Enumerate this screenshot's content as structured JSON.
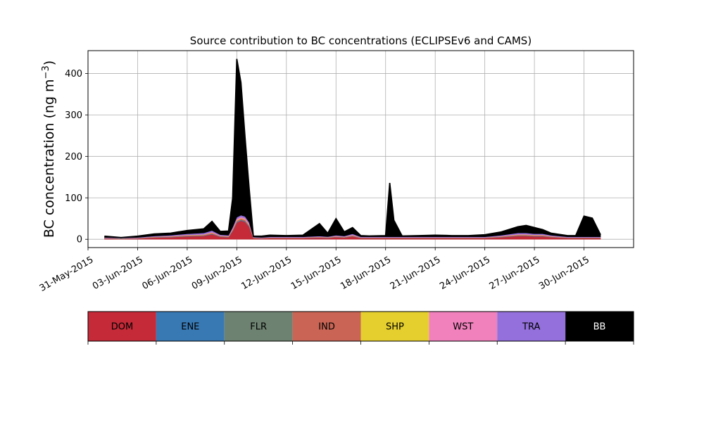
{
  "chart_data": {
    "type": "area",
    "stacked": true,
    "title": "Source contribution to BC concentrations (ECLIPSEv6 and CAMS)",
    "ylabel": "BC concentration (ng m",
    "ylabel_superscript": "−3",
    "ylabel_close": ")",
    "xlabel": "",
    "ylim": [
      -20,
      455
    ],
    "xlim": [
      "2015-05-31",
      "2015-07-03"
    ],
    "yticks": [
      0,
      100,
      200,
      300,
      400
    ],
    "xticks": [
      "31-May-2015",
      "03-Jun-2015",
      "06-Jun-2015",
      "09-Jun-2015",
      "12-Jun-2015",
      "15-Jun-2015",
      "18-Jun-2015",
      "21-Jun-2015",
      "24-Jun-2015",
      "27-Jun-2015",
      "30-Jun-2015"
    ],
    "grid": true,
    "x": [
      "2015-06-01",
      "2015-06-02",
      "2015-06-03",
      "2015-06-04",
      "2015-06-05",
      "2015-06-06",
      "2015-06-07",
      "2015-06-07 12:00",
      "2015-06-08",
      "2015-06-08 12:00",
      "2015-06-08 18:00",
      "2015-06-09",
      "2015-06-09 06:00",
      "2015-06-09 12:00",
      "2015-06-09 18:00",
      "2015-06-10",
      "2015-06-10 12:00",
      "2015-06-11",
      "2015-06-12",
      "2015-06-13",
      "2015-06-14",
      "2015-06-14 12:00",
      "2015-06-15",
      "2015-06-15 12:00",
      "2015-06-16",
      "2015-06-16 12:00",
      "2015-06-17",
      "2015-06-18",
      "2015-06-18 06:00",
      "2015-06-18 12:00",
      "2015-06-19",
      "2015-06-20",
      "2015-06-21",
      "2015-06-22",
      "2015-06-23",
      "2015-06-24",
      "2015-06-25",
      "2015-06-26",
      "2015-06-26 12:00",
      "2015-06-27",
      "2015-06-27 12:00",
      "2015-06-28",
      "2015-06-29",
      "2015-06-29 12:00",
      "2015-06-30",
      "2015-06-30 12:00",
      "2015-07-01"
    ],
    "series": [
      {
        "name": "DOM",
        "color": "#c42a38",
        "values": [
          2,
          1,
          2,
          4,
          5,
          7,
          8,
          12,
          6,
          5,
          20,
          40,
          45,
          42,
          30,
          3,
          2,
          3,
          3,
          3,
          4,
          3,
          5,
          4,
          7,
          3,
          3,
          3,
          3,
          3,
          3,
          3,
          3,
          3,
          3,
          3,
          5,
          8,
          8,
          7,
          7,
          5,
          3,
          3,
          3,
          3,
          3
        ]
      },
      {
        "name": "ENE",
        "color": "#3879b4",
        "values": [
          0.3,
          0.3,
          0.3,
          0.5,
          0.5,
          0.7,
          0.8,
          1,
          0.6,
          0.5,
          1,
          1.5,
          1.5,
          1.5,
          1.2,
          0.3,
          0.3,
          0.3,
          0.3,
          0.3,
          0.4,
          0.4,
          0.5,
          0.4,
          0.6,
          0.3,
          0.3,
          0.3,
          0.3,
          0.3,
          0.3,
          0.3,
          0.3,
          0.3,
          0.3,
          0.3,
          0.5,
          0.8,
          0.8,
          0.7,
          0.7,
          0.5,
          0.3,
          0.3,
          0.3,
          0.3,
          0.3
        ]
      },
      {
        "name": "FLR",
        "color": "#6d8270",
        "values": [
          0.1,
          0.1,
          0.1,
          0.2,
          0.2,
          0.3,
          0.3,
          0.4,
          0.2,
          0.2,
          0.4,
          0.6,
          0.6,
          0.6,
          0.5,
          0.1,
          0.1,
          0.1,
          0.1,
          0.1,
          0.2,
          0.2,
          0.2,
          0.2,
          0.3,
          0.1,
          0.1,
          0.1,
          0.1,
          0.1,
          0.1,
          0.1,
          0.1,
          0.1,
          0.1,
          0.1,
          0.2,
          0.3,
          0.3,
          0.3,
          0.3,
          0.2,
          0.1,
          0.1,
          0.1,
          0.1,
          0.1
        ]
      },
      {
        "name": "IND",
        "color": "#ca6555",
        "values": [
          0.5,
          0.4,
          0.5,
          0.8,
          1,
          1.3,
          1.5,
          2,
          1,
          1,
          2,
          3,
          3,
          3,
          2.5,
          0.5,
          0.5,
          0.6,
          0.6,
          0.6,
          0.8,
          0.7,
          1,
          0.8,
          1.3,
          0.6,
          0.6,
          0.6,
          0.6,
          0.6,
          0.6,
          0.6,
          0.6,
          0.6,
          0.6,
          0.6,
          1,
          1.5,
          1.5,
          1.3,
          1.3,
          1,
          0.6,
          0.6,
          0.6,
          0.6,
          0.6
        ]
      },
      {
        "name": "SHP",
        "color": "#e5cf2f",
        "values": [
          0.3,
          0.3,
          0.3,
          0.4,
          0.5,
          0.6,
          0.7,
          0.8,
          0.5,
          0.5,
          0.8,
          1,
          1,
          1,
          0.8,
          0.3,
          0.3,
          0.3,
          0.3,
          0.3,
          0.4,
          0.4,
          0.5,
          0.4,
          0.6,
          0.3,
          0.3,
          0.3,
          0.3,
          0.3,
          0.3,
          0.3,
          0.3,
          0.3,
          0.3,
          0.3,
          0.5,
          0.7,
          0.7,
          0.6,
          0.6,
          0.5,
          0.3,
          0.3,
          0.3,
          0.3,
          0.3
        ]
      },
      {
        "name": "WST",
        "color": "#f081bc",
        "values": [
          0.3,
          0.2,
          0.3,
          0.5,
          0.6,
          0.8,
          0.9,
          1.5,
          0.7,
          0.6,
          2,
          3,
          3,
          3,
          2.5,
          0.3,
          0.3,
          0.4,
          0.4,
          0.4,
          0.5,
          0.4,
          0.6,
          0.5,
          0.8,
          0.4,
          0.4,
          0.4,
          0.4,
          0.4,
          0.4,
          0.4,
          0.4,
          0.4,
          0.4,
          0.4,
          0.6,
          1,
          1,
          0.9,
          0.9,
          0.6,
          0.4,
          0.4,
          0.4,
          0.4,
          0.4
        ]
      },
      {
        "name": "TRA",
        "color": "#9370db",
        "values": [
          1,
          0.8,
          1,
          1.5,
          2,
          2.5,
          3,
          3.5,
          2,
          2,
          3,
          4,
          4,
          4,
          3.5,
          1,
          1,
          1.2,
          1.2,
          1.2,
          1.5,
          1.3,
          2,
          1.5,
          2.5,
          1.2,
          1.2,
          1.2,
          1.2,
          1.2,
          1.2,
          1.2,
          1.2,
          1.2,
          1.2,
          1.2,
          2,
          3,
          3,
          2.5,
          2.5,
          2,
          1.2,
          1.2,
          1.2,
          1.2,
          1.2
        ]
      },
      {
        "name": "BB",
        "color": "#000000",
        "values": [
          3,
          1,
          3,
          5,
          5,
          8,
          10,
          22,
          8,
          10,
          70,
          382,
          320,
          190,
          80,
          2,
          3,
          4,
          3,
          4,
          30,
          8,
          40,
          10,
          15,
          3,
          2,
          3,
          130,
          40,
          2,
          3,
          4,
          3,
          3,
          5,
          8,
          15,
          18,
          15,
          10,
          5,
          3,
          3,
          50,
          45,
          5
        ]
      }
    ],
    "legend": {
      "placement": "bottom colorbar",
      "entries": [
        "DOM",
        "ENE",
        "FLR",
        "IND",
        "SHP",
        "WST",
        "TRA",
        "BB"
      ],
      "colors": [
        "#c42a38",
        "#3879b4",
        "#6d8270",
        "#ca6555",
        "#e5cf2f",
        "#f081bc",
        "#9370db",
        "#000000"
      ],
      "text_colors": [
        "#000000",
        "#000000",
        "#000000",
        "#000000",
        "#000000",
        "#000000",
        "#000000",
        "#ffffff"
      ]
    }
  }
}
